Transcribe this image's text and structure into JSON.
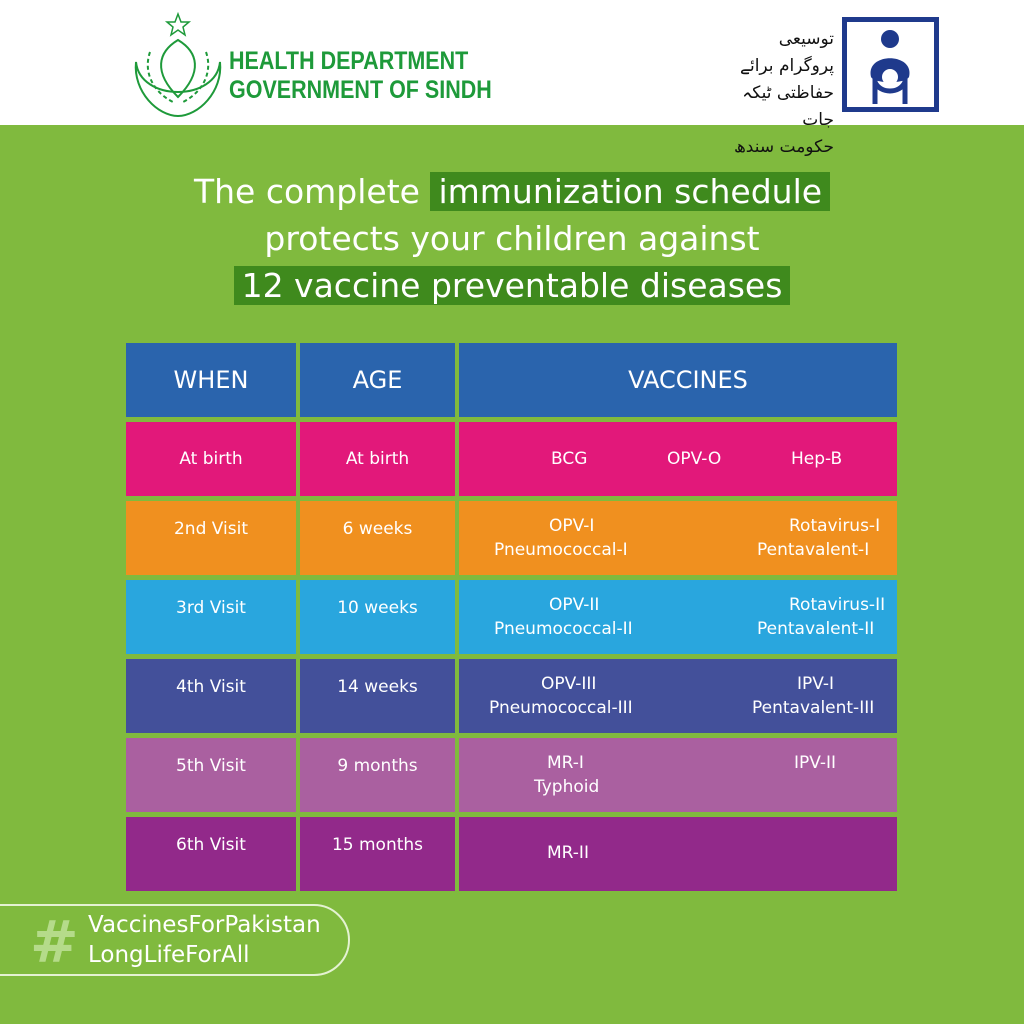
{
  "header": {
    "org_line1": "HEALTH DEPARTMENT",
    "org_line2": "GOVERNMENT OF SINDH",
    "urdu_lines": [
      "توسیعی پروگرام برائے",
      "حفاظتی ٹیکہ جات",
      "حکومت سندھ"
    ]
  },
  "headline": {
    "part1": "The complete ",
    "highlight1": "immunization schedule",
    "line2": "protects your children against",
    "highlight2": "12 vaccine preventable diseases"
  },
  "table": {
    "headers": [
      "WHEN",
      "AGE",
      "VACCINES"
    ],
    "rows": [
      {
        "when": "At birth",
        "age": "At birth",
        "color": "#e2187a",
        "vaccines": [
          "BCG",
          "OPV-O",
          "Hep-B"
        ]
      },
      {
        "when": "2nd Visit",
        "age": "6 weeks",
        "color": "#f0901f",
        "vaccines": [
          "OPV-I",
          "Pneumococcal-I",
          "Rotavirus-I",
          "Pentavalent-I"
        ]
      },
      {
        "when": "3rd Visit",
        "age": "10 weeks",
        "color": "#29a6de",
        "vaccines": [
          "OPV-II",
          "Pneumococcal-II",
          "Rotavirus-II",
          "Pentavalent-II"
        ]
      },
      {
        "when": "4th Visit",
        "age": "14 weeks",
        "color": "#43509a",
        "vaccines": [
          "OPV-III",
          "Pneumococcal-III",
          "IPV-I",
          "Pentavalent-III"
        ]
      },
      {
        "when": "5th Visit",
        "age": "9 months",
        "color": "#aa60a0",
        "vaccines": [
          "MR-I",
          "Typhoid",
          "IPV-II"
        ]
      },
      {
        "when": "6th Visit",
        "age": "15 months",
        "color": "#92298a",
        "vaccines": [
          "MR-II"
        ]
      }
    ]
  },
  "hashtag": {
    "symbol": "#",
    "line1": "VaccinesForPakistan",
    "line2": "LongLifeForAll"
  },
  "colors": {
    "background": "#80ba3e",
    "highlight": "#3f8a1d",
    "header": "#2a64ad",
    "logo_green": "#1e9a3a",
    "epi_blue": "#1f3a8c"
  }
}
